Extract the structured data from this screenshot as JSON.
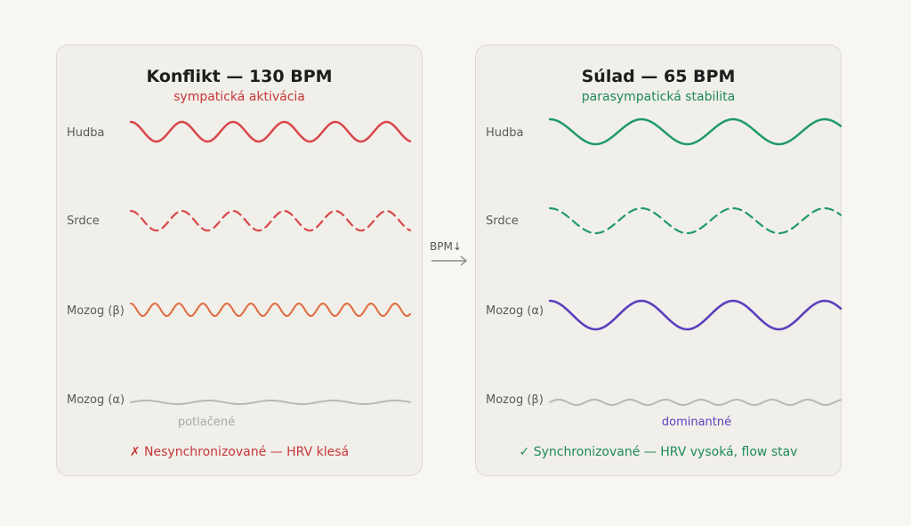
{
  "left": {
    "title": "Konflikt — 130 BPM",
    "subtitle": "sympatická aktivácia",
    "subtitle_color": "#c7373a",
    "rows": [
      {
        "label": "Hudba",
        "color": "#d9474a",
        "dashed": false,
        "note": ""
      },
      {
        "label": "Srdce",
        "color": "#d9474a",
        "dashed": true,
        "note": ""
      },
      {
        "label": "Mozog (β)",
        "color": "#e06a3a",
        "dashed": false,
        "note": ""
      },
      {
        "label": "Mozog (α)",
        "color": "#b8b8b8",
        "dashed": false,
        "note": "potlačené"
      }
    ],
    "footer": "✗ Nesynchronizované — HRV klesá",
    "footer_color": "#c7373a"
  },
  "right": {
    "title": "Súlad — 65 BPM",
    "subtitle": "parasympatická stabilita",
    "subtitle_color": "#1e8a5c",
    "rows": [
      {
        "label": "Hudba",
        "color": "#1f9a69",
        "dashed": false,
        "note": ""
      },
      {
        "label": "Srdce",
        "color": "#1f9a69",
        "dashed": true,
        "note": ""
      },
      {
        "label": "Mozog (α)",
        "color": "#5b3fbe",
        "dashed": false,
        "note": ""
      },
      {
        "label": "Mozog (β)",
        "color": "#b8b8b8",
        "dashed": false,
        "note": "dominantné"
      }
    ],
    "footer": "✓ Synchronizované — HRV vysoká, flow stav",
    "footer_color": "#1e8a5c"
  },
  "transition": {
    "label": "BPM↓",
    "color": "#8a8a8a"
  },
  "note_colors": {
    "left": "#a8a8a8",
    "right": "#5b3fbe"
  }
}
